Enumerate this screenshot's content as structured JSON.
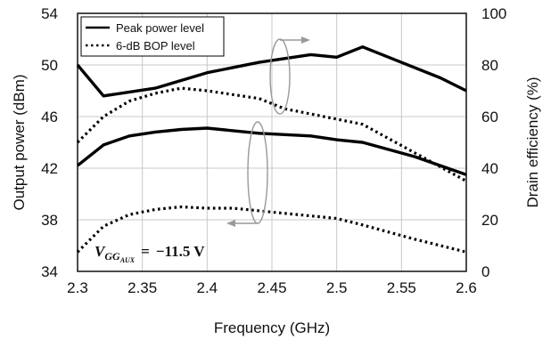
{
  "chart_data": {
    "type": "line",
    "xlabel": "Frequency (GHz)",
    "ylabel_left": "Output power (dBm)",
    "ylabel_right": "Drain efficiency (%)",
    "xlim": [
      2.3,
      2.6
    ],
    "ylim_left": [
      34,
      54
    ],
    "ylim_right": [
      0,
      100
    ],
    "x_ticks": [
      "2.3",
      "2.35",
      "2.4",
      "2.45",
      "2.5",
      "2.55",
      "2.6"
    ],
    "y_left_ticks": [
      "34",
      "38",
      "42",
      "46",
      "50",
      "54"
    ],
    "y_right_ticks": [
      "0",
      "20",
      "40",
      "60",
      "80",
      "100"
    ],
    "grid": true,
    "legend_position": "top-left",
    "legend": [
      {
        "label": "Peak power level",
        "style": "solid"
      },
      {
        "label": "6-dB BOP level",
        "style": "dotted"
      }
    ],
    "annotation": {
      "variable": "V",
      "subscript": "GG",
      "subsubscript": "AUX",
      "equals": "=",
      "value": "−11.5 V"
    },
    "series": [
      {
        "style": "solid",
        "axis": "right",
        "x": [
          2.3,
          2.32,
          2.36,
          2.4,
          2.44,
          2.48,
          2.5,
          2.52,
          2.56,
          2.58,
          2.6
        ],
        "values": [
          80,
          68,
          71,
          77,
          81,
          84,
          83,
          87,
          79,
          75,
          70
        ]
      },
      {
        "style": "dotted",
        "axis": "right",
        "x": [
          2.3,
          2.32,
          2.34,
          2.36,
          2.38,
          2.4,
          2.44,
          2.46,
          2.48,
          2.5,
          2.52,
          2.56,
          2.6
        ],
        "values": [
          50,
          60,
          66,
          69,
          71,
          70,
          67,
          63,
          61,
          59,
          57,
          46,
          35
        ]
      },
      {
        "style": "solid",
        "axis": "left",
        "x": [
          2.3,
          2.32,
          2.34,
          2.36,
          2.38,
          2.4,
          2.44,
          2.48,
          2.5,
          2.52,
          2.56,
          2.6
        ],
        "values": [
          42.2,
          43.8,
          44.5,
          44.8,
          45.0,
          45.1,
          44.7,
          44.5,
          44.2,
          44.0,
          42.9,
          41.5
        ]
      },
      {
        "style": "dotted",
        "axis": "left",
        "x": [
          2.3,
          2.32,
          2.34,
          2.36,
          2.38,
          2.4,
          2.42,
          2.46,
          2.5,
          2.52,
          2.56,
          2.6
        ],
        "values": [
          35.5,
          37.5,
          38.4,
          38.8,
          39.0,
          38.9,
          38.9,
          38.5,
          38.1,
          37.6,
          36.5,
          35.5
        ]
      }
    ]
  }
}
